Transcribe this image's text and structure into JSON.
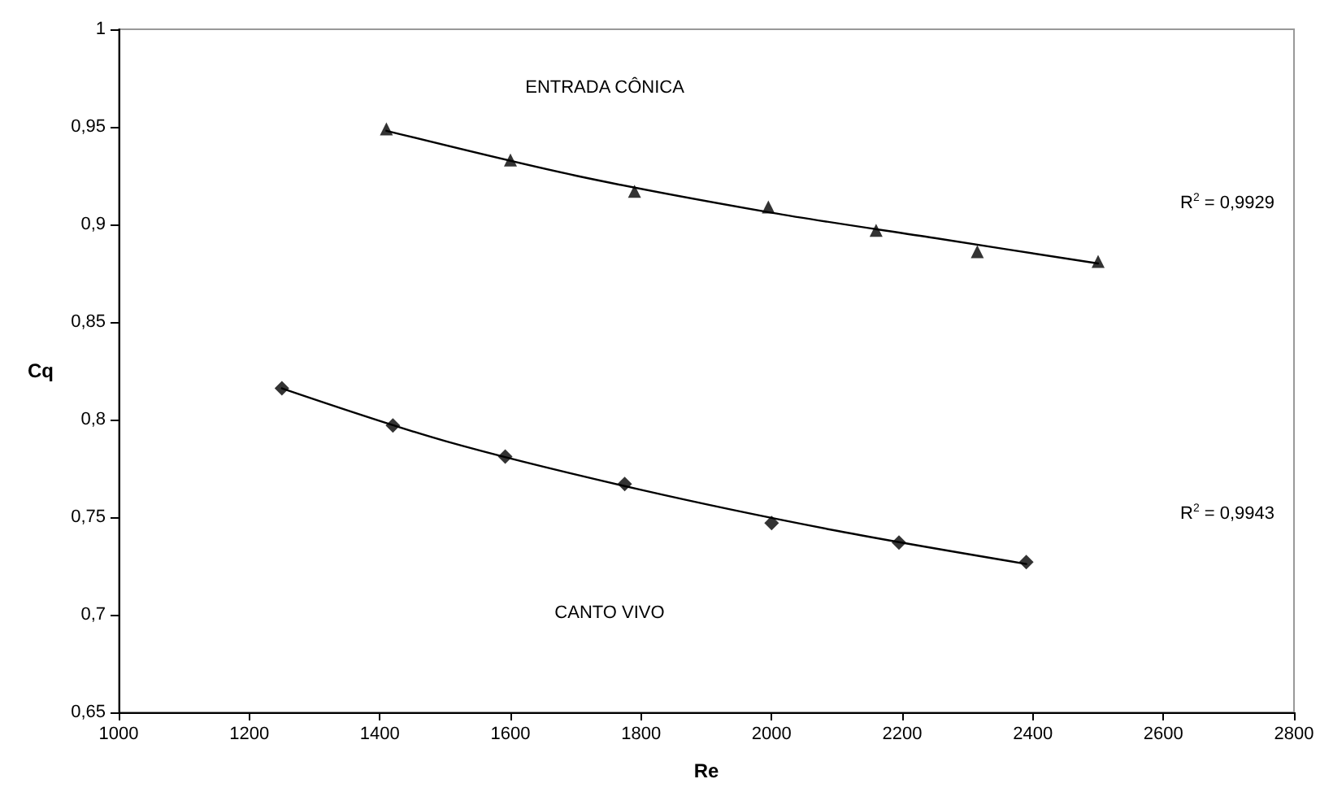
{
  "chart_data": {
    "type": "scatter",
    "xlabel": "Re",
    "ylabel": "Cq",
    "xlim": [
      1000,
      2800
    ],
    "xticks": [
      1000,
      1200,
      1400,
      1600,
      1800,
      2000,
      2200,
      2400,
      2600,
      2800
    ],
    "ylim": [
      0.65,
      1
    ],
    "yticks": [
      {
        "value": 0.65,
        "label": "0,65"
      },
      {
        "value": 0.7,
        "label": "0,7"
      },
      {
        "value": 0.75,
        "label": "0,75"
      },
      {
        "value": 0.8,
        "label": "0,8"
      },
      {
        "value": 0.85,
        "label": "0,85"
      },
      {
        "value": 0.9,
        "label": "0,9"
      },
      {
        "value": 0.95,
        "label": "0,95"
      },
      {
        "value": 1,
        "label": "1"
      }
    ],
    "grid": false,
    "series": [
      {
        "marker": "triangle",
        "color": "#000000",
        "x": [
          1410,
          1600,
          1790,
          1995,
          2160,
          2315,
          2500
        ],
        "values": [
          0.949,
          0.933,
          0.917,
          0.909,
          0.897,
          0.886,
          0.881
        ]
      },
      {
        "marker": "diamond",
        "color": "#000000",
        "x": [
          1250,
          1420,
          1592,
          1775,
          2000,
          2195,
          2390
        ],
        "values": [
          0.816,
          0.797,
          0.781,
          0.767,
          0.747,
          0.737,
          0.727
        ]
      },
      {
        "type": "line",
        "marker": "none",
        "line_style": "solid",
        "color": "#000000",
        "x": [
          1410,
          1700,
          2000,
          2250,
          2500
        ],
        "values": [
          0.948,
          0.925,
          0.906,
          0.893,
          0.88
        ]
      },
      {
        "type": "line",
        "marker": "none",
        "line_style": "solid",
        "color": "#000000",
        "x": [
          1250,
          1500,
          1800,
          2100,
          2390
        ],
        "values": [
          0.816,
          0.789,
          0.764,
          0.743,
          0.726
        ]
      }
    ],
    "annotations": [
      "ENTRADA CÔNICA",
      "R$^{2}$ = 0,9929",
      "R$^{2}$ = 0,9943",
      "CANTO VIVO"
    ]
  }
}
